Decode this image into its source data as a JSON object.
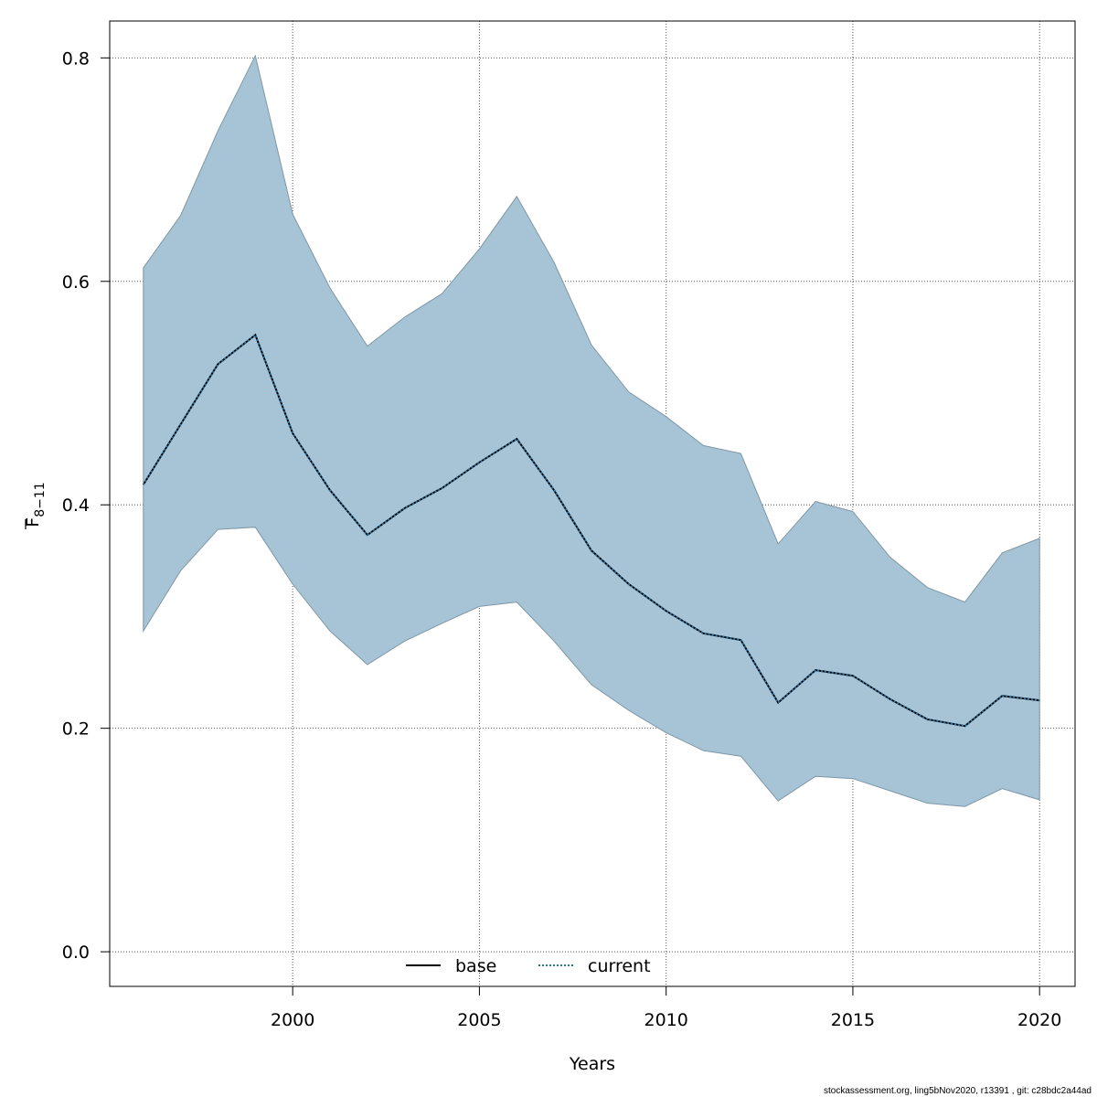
{
  "chart_data": {
    "type": "line",
    "xlabel": "Years",
    "ylabel": "F",
    "ylabel_subscript": "8−11",
    "xlim": [
      1995.1,
      2020.95
    ],
    "ylim": [
      -0.031,
      0.833
    ],
    "x_ticks": [
      2000,
      2005,
      2010,
      2015,
      2020
    ],
    "x_tick_labels": [
      "2000",
      "2005",
      "2010",
      "2015",
      "2020"
    ],
    "y_ticks": [
      0.0,
      0.2,
      0.4,
      0.6,
      0.8
    ],
    "y_tick_labels": [
      "0.0",
      "0.2",
      "0.4",
      "0.6",
      "0.8"
    ],
    "grid": true,
    "legend_position": "bottom-center",
    "x": [
      1996,
      1997,
      1998,
      1999,
      2000,
      2001,
      2002,
      2003,
      2004,
      2005,
      2006,
      2007,
      2008,
      2009,
      2010,
      2011,
      2012,
      2013,
      2014,
      2015,
      2016,
      2017,
      2018,
      2019,
      2020
    ],
    "band": {
      "upper": [
        0.612,
        0.659,
        0.735,
        0.802,
        0.66,
        0.594,
        0.542,
        0.568,
        0.589,
        0.629,
        0.676,
        0.617,
        0.543,
        0.501,
        0.479,
        0.453,
        0.446,
        0.365,
        0.403,
        0.394,
        0.353,
        0.326,
        0.313,
        0.357,
        0.37
      ],
      "lower": [
        0.287,
        0.341,
        0.378,
        0.38,
        0.329,
        0.287,
        0.257,
        0.278,
        0.294,
        0.309,
        0.313,
        0.278,
        0.239,
        0.216,
        0.196,
        0.18,
        0.175,
        0.135,
        0.157,
        0.155,
        0.144,
        0.133,
        0.13,
        0.146,
        0.136
      ],
      "color": "#a6c4d5",
      "edge_color": "#7f97a6"
    },
    "series": [
      {
        "name": "base",
        "style": "solid",
        "color": "#000000",
        "values": [
          0.418,
          0.472,
          0.526,
          0.552,
          0.464,
          0.413,
          0.373,
          0.397,
          0.415,
          0.438,
          0.459,
          0.413,
          0.359,
          0.329,
          0.305,
          0.285,
          0.279,
          0.223,
          0.252,
          0.247,
          0.226,
          0.208,
          0.202,
          0.229,
          0.225
        ]
      },
      {
        "name": "current",
        "style": "dotted",
        "color": "#2b6f9c",
        "values": [
          0.418,
          0.472,
          0.526,
          0.552,
          0.464,
          0.413,
          0.373,
          0.397,
          0.415,
          0.438,
          0.459,
          0.413,
          0.359,
          0.329,
          0.305,
          0.285,
          0.279,
          0.223,
          0.252,
          0.247,
          0.226,
          0.208,
          0.202,
          0.229,
          0.225
        ]
      }
    ]
  },
  "footer": "stockassessment.org, ling5bNov2020, r13391 , git: c28bdc2a44ad"
}
